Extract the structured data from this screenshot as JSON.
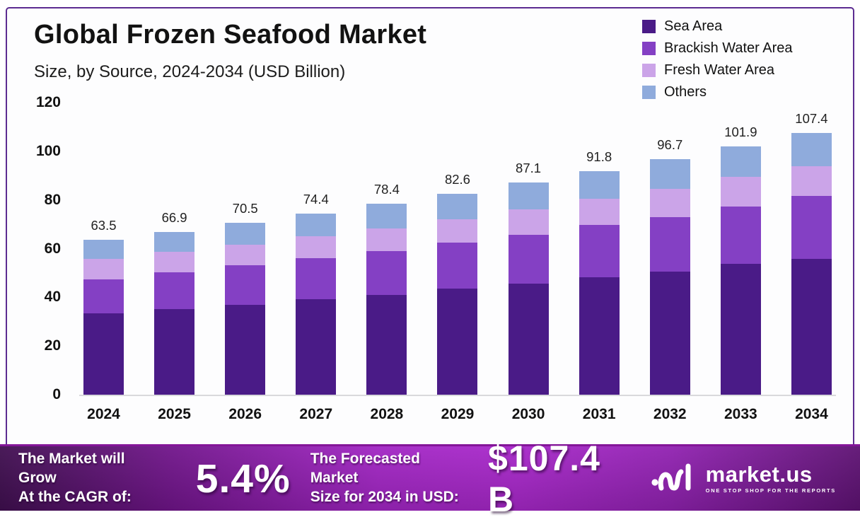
{
  "header": {
    "title": "Global Frozen Seafood Market",
    "subtitle": "Size, by Source, 2024-2034 (USD Billion)"
  },
  "chart_data": {
    "type": "bar",
    "stacked": true,
    "title": "Global Frozen Seafood Market Size, by Source, 2024-2034 (USD Billion)",
    "x": [
      "2024",
      "2025",
      "2026",
      "2027",
      "2028",
      "2029",
      "2030",
      "2031",
      "2032",
      "2033",
      "2034"
    ],
    "ylim": [
      0,
      120
    ],
    "yticks": [
      0,
      20,
      40,
      60,
      80,
      100,
      120
    ],
    "grid": false,
    "legend_position": "top-right",
    "series": [
      {
        "name": "Sea Area",
        "color": "#4A1B87",
        "values": [
          33.4,
          35.2,
          36.9,
          39.2,
          41.0,
          43.6,
          45.6,
          48.2,
          50.6,
          53.7,
          55.9
        ]
      },
      {
        "name": "Brackish Water Area",
        "color": "#8440C4",
        "values": [
          14.0,
          15.1,
          16.3,
          16.9,
          18.0,
          18.9,
          20.1,
          21.5,
          22.3,
          23.6,
          25.7
        ]
      },
      {
        "name": "Fresh Water Area",
        "color": "#CBA4E8",
        "values": [
          8.4,
          8.4,
          8.4,
          9.0,
          9.3,
          9.6,
          10.4,
          10.8,
          11.6,
          12.2,
          12.3
        ]
      },
      {
        "name": "Others",
        "color": "#8FABDC",
        "values": [
          7.7,
          8.2,
          8.9,
          9.3,
          10.1,
          10.5,
          11.0,
          11.3,
          12.2,
          12.4,
          13.5
        ]
      }
    ],
    "totals": [
      63.5,
      66.9,
      70.5,
      74.4,
      78.4,
      82.6,
      87.1,
      91.8,
      96.7,
      101.9,
      107.4
    ]
  },
  "footer": {
    "cagr": {
      "line1": "The Market will Grow",
      "line2": "At the CAGR of:",
      "value": "5.4%"
    },
    "forecast": {
      "line1": "The Forecasted Market",
      "line2": "Size for 2034 in USD:",
      "value": "$107.4 B"
    },
    "brand": {
      "name": "market.us",
      "tagline": "ONE STOP SHOP FOR THE REPORTS"
    }
  }
}
